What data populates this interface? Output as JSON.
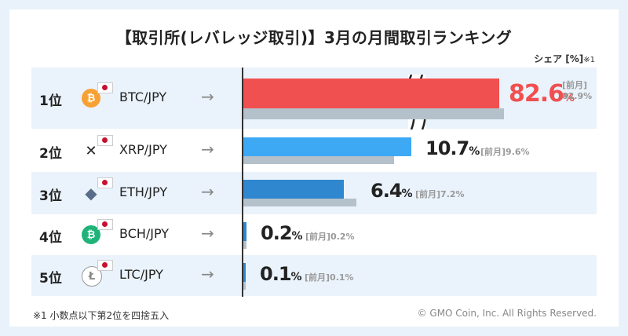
{
  "title": "【取引所(レバレッジ取引)】3月の月間取引ランキング",
  "unit_label": "シェア [%]",
  "unit_note": "※1",
  "prev_label": "[前月]",
  "footnote": "※1  小数点以下第2位を四捨五入",
  "copyright": "© GMO Coin, Inc. All Rights Reserved.",
  "colors": {
    "first": "#f05050",
    "second": "#3da9f5",
    "rest": "#2f87cf",
    "prev": "#b4c1ca"
  },
  "chart_data": {
    "type": "bar",
    "title": "【取引所(レバレッジ取引)】3月の月間取引ランキング",
    "categories": [
      "BTC/JPY",
      "XRP/JPY",
      "ETH/JPY",
      "BCH/JPY",
      "LTC/JPY"
    ],
    "ranks": [
      "1位",
      "2位",
      "3位",
      "4位",
      "5位"
    ],
    "icons": [
      "bitcoin-icon",
      "xrp-icon",
      "ethereum-icon",
      "bitcoin-cash-icon",
      "litecoin-icon"
    ],
    "series": [
      {
        "name": "",
        "values": [
          82.6,
          10.7,
          6.4,
          0.2,
          0.1
        ]
      },
      {
        "name": "[前月]",
        "values": [
          82.9,
          9.6,
          7.2,
          0.2,
          0.1
        ]
      }
    ],
    "value_labels": [
      "82.6",
      "10.7",
      "6.4",
      "0.2",
      "0.1"
    ],
    "prev_labels": [
      "82.9%",
      "9.6%",
      "7.2%",
      "0.2%",
      "0.1%"
    ],
    "axis_break": true,
    "grid": false
  }
}
